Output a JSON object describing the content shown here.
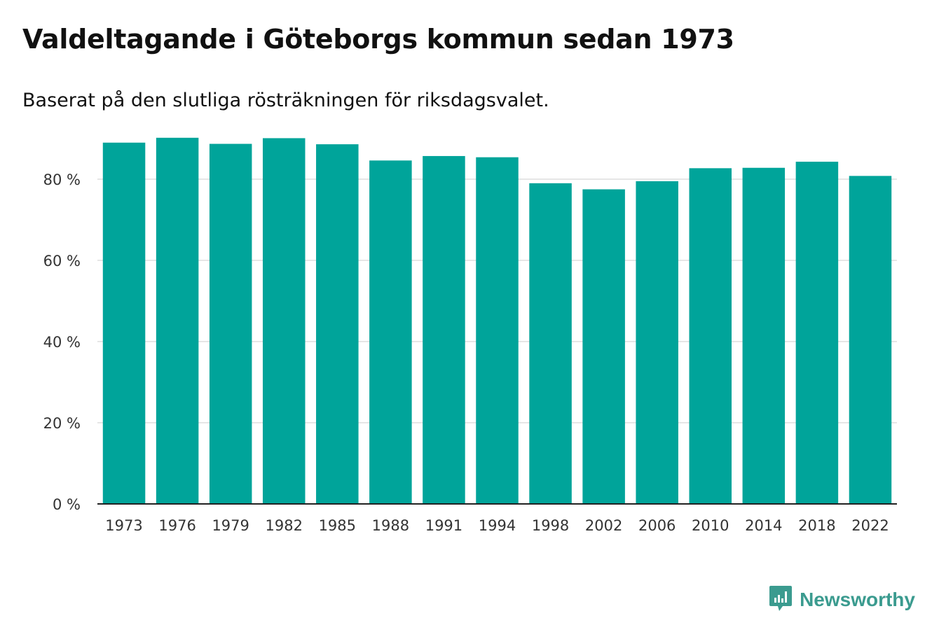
{
  "title": "Valdeltagande i Göteborgs kommun sedan 1973",
  "subtitle": "Baserat på den slutliga rösträkningen för riksdagsvalet.",
  "brand": {
    "name": "Newsworthy",
    "color": "#3b9b8f",
    "icon": "newsworthy-logo-icon"
  },
  "colors": {
    "bar": "#00a49a",
    "grid": "#dddddd",
    "axis": "#222222"
  },
  "chart_data": {
    "type": "bar",
    "title": "Valdeltagande i Göteborgs kommun sedan 1973",
    "subtitle": "Baserat på den slutliga rösträkningen för riksdagsvalet.",
    "xlabel": "",
    "ylabel": "",
    "categories": [
      "1973",
      "1976",
      "1979",
      "1982",
      "1985",
      "1988",
      "1991",
      "1994",
      "1998",
      "2002",
      "2006",
      "2010",
      "2014",
      "2018",
      "2022"
    ],
    "values": [
      89.0,
      90.2,
      88.7,
      90.1,
      88.6,
      84.6,
      85.7,
      85.4,
      79.0,
      77.5,
      79.5,
      82.7,
      82.8,
      84.3,
      80.8
    ],
    "ylim": [
      0,
      90
    ],
    "yticks": [
      0,
      20,
      40,
      60,
      80
    ],
    "ytick_labels": [
      "0 %",
      "20 %",
      "40 %",
      "60 %",
      "80 %"
    ],
    "grid": true,
    "legend": "none"
  }
}
